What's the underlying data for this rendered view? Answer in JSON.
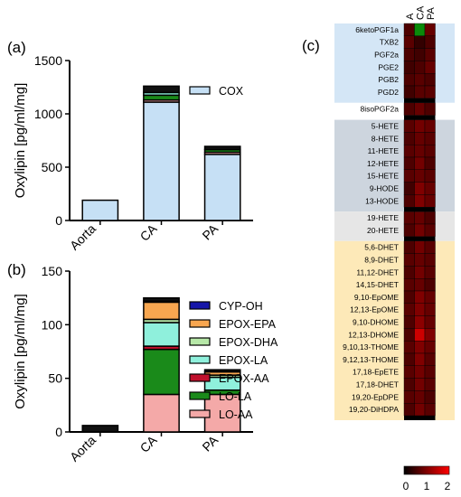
{
  "panel_labels": [
    "(a)",
    "(b)",
    "(c)"
  ],
  "chart_data": [
    {
      "panel": "(a)",
      "type": "bar",
      "stacked": true,
      "categories": [
        "Aorta",
        "CA",
        "PA"
      ],
      "ylabel": "Oxylipin [pg/ml/mg]",
      "ylim": [
        0,
        1500
      ],
      "yticks": [
        0,
        500,
        1000,
        1500
      ],
      "legend": [
        "COX"
      ],
      "series": [
        {
          "name": "COX",
          "color": "#c6e0f5",
          "values": [
            190,
            1110,
            620
          ]
        },
        {
          "name": "",
          "color": "#f4a9a8",
          "values": [
            0,
            20,
            20
          ]
        },
        {
          "name": "",
          "color": "#1a8a1a",
          "values": [
            0,
            45,
            25
          ]
        },
        {
          "name": "",
          "color": "#8ff0dc",
          "values": [
            0,
            25,
            0
          ]
        },
        {
          "name": "",
          "color": "#111111",
          "values": [
            0,
            60,
            30
          ]
        }
      ]
    },
    {
      "panel": "(b)",
      "type": "bar",
      "stacked": true,
      "categories": [
        "Aorta",
        "CA",
        "PA"
      ],
      "ylabel": "Oxylipin [pg/ml/mg]",
      "ylim": [
        0,
        150
      ],
      "yticks": [
        0,
        50,
        100,
        150
      ],
      "series": [
        {
          "name": "LO-AA",
          "color": "#f4a9a8",
          "values": [
            0,
            35,
            35
          ]
        },
        {
          "name": "LO-LA",
          "color": "#1a8a1a",
          "values": [
            0,
            42,
            4
          ]
        },
        {
          "name": "EPOX-AA",
          "color": "#c0102c",
          "values": [
            0,
            3,
            0
          ]
        },
        {
          "name": "EPOX-LA",
          "color": "#8ff0dc",
          "values": [
            0,
            22,
            12
          ]
        },
        {
          "name": "EPOX-DHA",
          "color": "#b7e8a8",
          "values": [
            0,
            3,
            2
          ]
        },
        {
          "name": "EPOX-EPA",
          "color": "#f7a650",
          "values": [
            0,
            16,
            3
          ]
        },
        {
          "name": "CYP-OH",
          "color": "#1515a8",
          "values": [
            0,
            1,
            0
          ]
        },
        {
          "name": "",
          "color": "#111111",
          "values": [
            6,
            3,
            2
          ]
        }
      ]
    },
    {
      "panel": "(c)",
      "type": "heatmap",
      "columns": [
        "A",
        "CA",
        "PA"
      ],
      "colorbar_ticks": [
        "0",
        "1",
        "2"
      ],
      "colorscale": [
        "#000000",
        "#ff0000"
      ],
      "groups": [
        {
          "color": "#d4e6f6",
          "rows": [
            {
              "label": "6ketoPGF1a",
              "values": [
                0.6,
                -1,
                0.8
              ]
            },
            {
              "label": "TXB2",
              "values": [
                0.7,
                0.4,
                0.6
              ]
            },
            {
              "label": "PGF2a",
              "values": [
                0.6,
                0.5,
                0.7
              ]
            },
            {
              "label": "PGE2",
              "values": [
                0.5,
                0.6,
                0.8
              ]
            },
            {
              "label": "PGB2",
              "values": [
                0.6,
                0.7,
                0.6
              ]
            },
            {
              "label": "PGD2",
              "values": [
                0.5,
                0.7,
                0.7
              ]
            }
          ]
        },
        {
          "color": "#ffffff",
          "rows": [
            {
              "label": "8isoPGF2a",
              "values": [
                0.6,
                0.8,
                0.6
              ]
            }
          ]
        },
        {
          "color": "#cdd5de",
          "rows": [
            {
              "label": "5-HETE",
              "values": [
                0.7,
                0.9,
                0.8
              ]
            },
            {
              "label": "8-HETE",
              "values": [
                0.6,
                0.8,
                0.7
              ]
            },
            {
              "label": "11-HETE",
              "values": [
                0.7,
                0.8,
                0.7
              ]
            },
            {
              "label": "12-HETE",
              "values": [
                0.6,
                0.9,
                0.6
              ]
            },
            {
              "label": "15-HETE",
              "values": [
                0.7,
                0.8,
                0.7
              ]
            },
            {
              "label": "9-HODE",
              "values": [
                0.5,
                1.0,
                0.8
              ]
            },
            {
              "label": "13-HODE",
              "values": [
                0.6,
                1.0,
                0.8
              ]
            }
          ]
        },
        {
          "color": "#e6e6e6",
          "rows": [
            {
              "label": "19-HETE",
              "values": [
                0.7,
                0.8,
                0.6
              ]
            },
            {
              "label": "20-HETE",
              "values": [
                0.6,
                0.9,
                0.7
              ]
            }
          ]
        },
        {
          "color": "#fde9b8",
          "rows": [
            {
              "label": "5,6-DHET",
              "values": [
                0.6,
                0.9,
                0.7
              ]
            },
            {
              "label": "8,9-DHET",
              "values": [
                0.7,
                0.8,
                0.7
              ]
            },
            {
              "label": "11,12-DHET",
              "values": [
                0.6,
                0.9,
                0.7
              ]
            },
            {
              "label": "14,15-DHET",
              "values": [
                0.7,
                0.8,
                0.6
              ]
            },
            {
              "label": "9,10-EpOME",
              "values": [
                0.6,
                1.0,
                0.8
              ]
            },
            {
              "label": "12,13-EpOME",
              "values": [
                0.7,
                1.0,
                0.8
              ]
            },
            {
              "label": "9,10-DHOME",
              "values": [
                0.6,
                1.1,
                0.8
              ]
            },
            {
              "label": "12,13-DHOME",
              "values": [
                0.6,
                1.6,
                1.0
              ]
            },
            {
              "label": "9,10,13-THOME",
              "values": [
                0.7,
                1.0,
                0.8
              ]
            },
            {
              "label": "9,12,13-THOME",
              "values": [
                0.6,
                1.0,
                0.7
              ]
            },
            {
              "label": "17,18-EpETE",
              "values": [
                0.7,
                0.9,
                0.7
              ]
            },
            {
              "label": "17,18-DHET",
              "values": [
                0.6,
                0.9,
                0.7
              ]
            },
            {
              "label": "19,20-EpDPE",
              "values": [
                0.7,
                0.8,
                0.6
              ]
            },
            {
              "label": "19,20-DiHDPA",
              "values": [
                0.6,
                0.9,
                0.7
              ]
            }
          ]
        }
      ]
    }
  ]
}
